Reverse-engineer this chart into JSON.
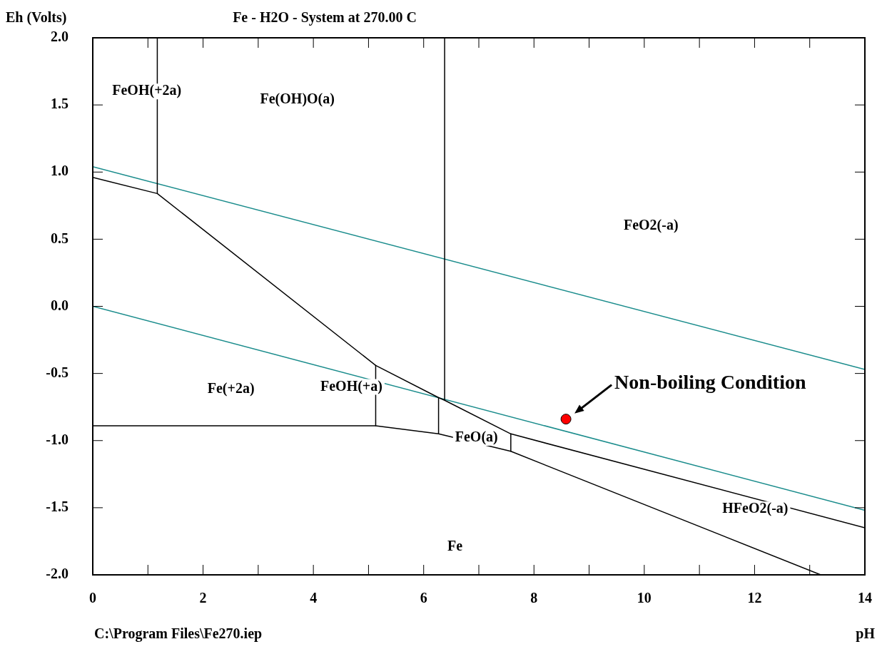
{
  "chart_data": {
    "type": "line",
    "title": "Fe - H2O - System at 270.00 C",
    "ylabel": "Eh (Volts)",
    "xlabel": "pH",
    "xlim": [
      0,
      14
    ],
    "ylim": [
      -2.0,
      2.0
    ],
    "xticks": [
      0,
      {
        "value": 1,
        "label": null
      },
      2,
      {
        "value": 3,
        "label": null
      },
      4,
      {
        "value": 5,
        "label": null
      },
      6,
      {
        "value": 7,
        "label": null
      },
      8,
      {
        "value": 9,
        "label": null
      },
      10,
      {
        "value": 11,
        "label": null
      },
      12,
      {
        "value": 13,
        "label": null
      },
      14
    ],
    "yticks": [
      {
        "value": -2,
        "label": "-2.0"
      },
      {
        "value": -1.5,
        "label": "-1.5"
      },
      {
        "value": -1,
        "label": "-1.0"
      },
      {
        "value": -0.5,
        "label": "-0.5"
      },
      {
        "value": 0,
        "label": "0.0"
      },
      {
        "value": 0.5,
        "label": "0.5"
      },
      {
        "value": 1,
        "label": "1.0"
      },
      {
        "value": 1.5,
        "label": "1.5"
      },
      {
        "value": 2,
        "label": "2.0"
      }
    ],
    "grid": false,
    "legend": false,
    "marker": "none",
    "line_style": "solid",
    "series": [
      {
        "color": "#000000",
        "x": [
          1.17,
          1.17
        ],
        "values": [
          2.0,
          0.84
        ]
      },
      {
        "color": "#000000",
        "x": [
          0,
          1.17,
          5.13,
          6.27,
          6.38,
          7.58,
          14
        ],
        "values": [
          0.96,
          0.84,
          -0.44,
          -0.68,
          -0.7,
          -0.95,
          -1.65
        ]
      },
      {
        "color": "#000000",
        "x": [
          6.38,
          6.38
        ],
        "values": [
          2.0,
          -0.7
        ]
      },
      {
        "color": "#000000",
        "x": [
          5.13,
          5.13
        ],
        "values": [
          -0.44,
          -0.89
        ]
      },
      {
        "color": "#000000",
        "x": [
          6.27,
          6.27
        ],
        "values": [
          -0.68,
          -0.95
        ]
      },
      {
        "color": "#000000",
        "x": [
          7.58,
          7.58
        ],
        "values": [
          -0.95,
          -1.08
        ]
      },
      {
        "color": "#000000",
        "x": [
          0,
          5.13,
          6.27,
          7.58,
          13.2
        ],
        "values": [
          -0.89,
          -0.89,
          -0.95,
          -1.08,
          -2.0
        ]
      },
      {
        "color": "#1a8c8c",
        "x": [
          0,
          14
        ],
        "values": [
          1.04,
          -0.47
        ]
      },
      {
        "color": "#1a8c8c",
        "x": [
          0,
          14
        ],
        "values": [
          0,
          -1.52
        ]
      },
      {
        "type": "scatter",
        "marker": "circle",
        "color": "#ff0000",
        "x": [
          8.58
        ],
        "values": [
          -0.84
        ]
      }
    ],
    "annotations": [
      "FeOH(+2a)",
      "Fe(OH)O(a)",
      "FeO2(-a)",
      "Fe(+2a)",
      "FeOH(+a)",
      "FeO(a)",
      "HFeO2(-a)",
      "Fe",
      {
        "text": "Non-boiling Condition",
        "x": 8.58,
        "y": -0.84
      },
      "C:\\Program Files\\Fe270.iep"
    ]
  }
}
